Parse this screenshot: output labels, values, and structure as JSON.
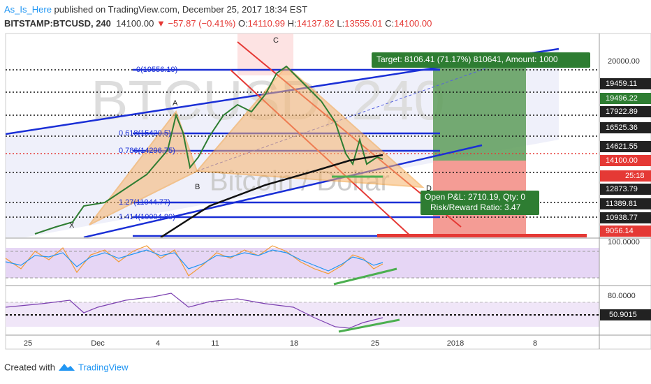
{
  "header": {
    "author": "As_Is_Here",
    "published": "published on TradingView.com, December 25, 2017 18:34 EST",
    "symbol": "BITSTAMP:BTCUSD, 240",
    "last": "14100.00",
    "change": "▼ −57.87 (−0.41%)",
    "o_label": "O:",
    "o": "14110.99",
    "h_label": "H:",
    "h": "14137.82",
    "l_label": "L:",
    "l": "13555.01",
    "c_label": "C:",
    "c": "14100.00"
  },
  "watermark": {
    "symbol": "BTCUSD, 240",
    "name": "Bitcoin / Dollar"
  },
  "price_axis": [
    "20000.00",
    "19459.11",
    "19496.22",
    "17922.89",
    "16525.36",
    "14621.55",
    "14100.00",
    "25:18",
    "12873.79",
    "11389.81",
    "10938.77",
    "9056.14"
  ],
  "fib_labels": [
    "0(19556.19)",
    "0.618(15420.5)",
    "0.786(14296.75)",
    "1.27(11044.77)",
    "1.414(10094.80)"
  ],
  "pattern_points": [
    "X",
    "A",
    "B",
    "C",
    "D"
  ],
  "target_box": "Target: 8106.41 (71.17%) 810641, Amount: 1000",
  "pnl_box": [
    "Open P&L: 2710.19, Qty: 0",
    "Risk/Reward Ratio: 3.47"
  ],
  "rsi_axis": [
    "100.0000"
  ],
  "osc_axis": [
    "80.0000",
    "50.9015"
  ],
  "time_axis": [
    "25",
    "Dec",
    "4",
    "11",
    "18",
    "25",
    "2018",
    "8"
  ],
  "footer": {
    "created": "Created with",
    "brand": "TradingView"
  }
}
